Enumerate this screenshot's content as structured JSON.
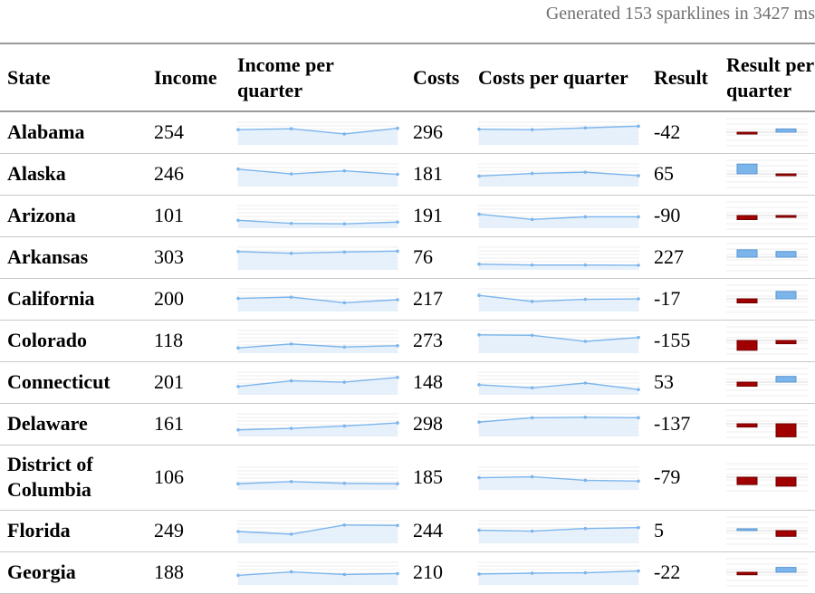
{
  "status": "Generated 153 sparklines in 3427 ms",
  "columns": {
    "state": "State",
    "income": "Income",
    "income_per_quarter": "Income per quarter",
    "costs": "Costs",
    "costs_per_quarter": "Costs per quarter",
    "result": "Result",
    "result_per_quarter": "Result per quarter"
  },
  "colors": {
    "line": "#7cb5ec",
    "area": "#e3eefb",
    "positive": "#7cb5ec",
    "negative": "#a00000"
  },
  "rows": [
    {
      "state": "Alabama",
      "income": "254",
      "income_q": [
        66,
        70,
        46,
        72
      ],
      "costs": "296",
      "costs_q": [
        68,
        66,
        74,
        82
      ],
      "result": "-42",
      "result_q": [
        -2,
        4
      ]
    },
    {
      "state": "Alaska",
      "income": "246",
      "income_q": [
        76,
        54,
        68,
        52
      ],
      "costs": "181",
      "costs_q": [
        44,
        56,
        62,
        46
      ],
      "result": "65",
      "result_q": [
        12,
        -2
      ]
    },
    {
      "state": "Arizona",
      "income": "101",
      "income_q": [
        32,
        18,
        16,
        24
      ],
      "costs": "191",
      "costs_q": [
        60,
        36,
        48,
        48
      ],
      "result": "-90",
      "result_q": [
        -5,
        -2
      ]
    },
    {
      "state": "Arkansas",
      "income": "303",
      "income_q": [
        80,
        72,
        78,
        82
      ],
      "costs": "76",
      "costs_q": [
        22,
        18,
        18,
        17
      ],
      "result": "227",
      "result_q": [
        9,
        7
      ]
    },
    {
      "state": "California",
      "income": "200",
      "income_q": [
        56,
        62,
        36,
        50
      ],
      "costs": "217",
      "costs_q": [
        70,
        42,
        52,
        54
      ],
      "result": "-17",
      "result_q": [
        -5,
        9
      ]
    },
    {
      "state": "Colorado",
      "income": "118",
      "income_q": [
        20,
        38,
        24,
        30
      ],
      "costs": "273",
      "costs_q": [
        80,
        78,
        50,
        68
      ],
      "result": "-155",
      "result_q": [
        -12,
        -4
      ]
    },
    {
      "state": "Connecticut",
      "income": "201",
      "income_q": [
        34,
        60,
        54,
        76
      ],
      "costs": "148",
      "costs_q": [
        42,
        28,
        50,
        20
      ],
      "result": "53",
      "result_q": [
        -5,
        7
      ]
    },
    {
      "state": "Delaware",
      "income": "161",
      "income_q": [
        26,
        33,
        44,
        58
      ],
      "costs": "298",
      "costs_q": [
        62,
        82,
        84,
        82
      ],
      "result": "-137",
      "result_q": [
        -4,
        -16
      ]
    },
    {
      "state": "District of Columbia",
      "income": "106",
      "income_q": [
        24,
        34,
        26,
        24
      ],
      "costs": "185",
      "costs_q": [
        52,
        56,
        40,
        36
      ],
      "result": "-79",
      "result_q": [
        -9,
        -11
      ]
    },
    {
      "state": "Florida",
      "income": "249",
      "income_q": [
        50,
        38,
        80,
        78
      ],
      "costs": "244",
      "costs_q": [
        56,
        52,
        64,
        68
      ],
      "result": "5",
      "result_q": [
        2,
        -7
      ]
    },
    {
      "state": "Georgia",
      "income": "188",
      "income_q": [
        40,
        56,
        44,
        48
      ],
      "costs": "210",
      "costs_q": [
        46,
        50,
        52,
        60
      ],
      "result": "-22",
      "result_q": [
        -3,
        6
      ]
    }
  ]
}
